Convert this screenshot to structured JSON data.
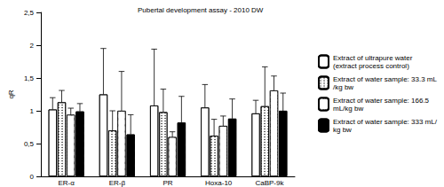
{
  "chart_data": {
    "type": "bar",
    "title": "Pubertal development assay - 2010 DW",
    "y_label": "qR",
    "categories": [
      "ER-α",
      "ER-β",
      "PR",
      "Hoxa-10",
      "CaBP-9k"
    ],
    "series": [
      {
        "name": "Extract of ultrapure water (extract process control)",
        "color": "#ffffff",
        "marker": "none",
        "values": [
          1.02,
          1.25,
          1.08,
          1.05,
          0.96
        ],
        "errors": [
          0.18,
          0.7,
          0.86,
          0.35,
          0.2
        ]
      },
      {
        "name": "Extract of water sample: 33.3 mL/kg bw",
        "color": "#ffffff",
        "marker": "dots",
        "values": [
          1.13,
          0.7,
          0.98,
          0.62,
          1.07
        ],
        "errors": [
          0.18,
          0.3,
          0.35,
          0.25,
          0.6
        ]
      },
      {
        "name": "Extract of water sample: 166.5 mL/kg bw",
        "color": "#ffffff",
        "marker": "grid",
        "values": [
          0.94,
          1.0,
          0.6,
          0.77,
          1.31
        ],
        "errors": [
          0.1,
          0.6,
          0.08,
          0.15,
          0.22
        ]
      },
      {
        "name": "Extract of water sample: 333 mL/kg bw",
        "color": "#000000",
        "marker": "stripes",
        "values": [
          0.99,
          0.64,
          0.82,
          0.88,
          1.0
        ],
        "errors": [
          0.12,
          0.3,
          0.4,
          0.3,
          0.27
        ]
      }
    ],
    "ylim": [
      0,
      2.5
    ],
    "yticks": [
      0,
      {
        "value": 0.5,
        "label": "0,5"
      },
      1,
      {
        "value": 1.5,
        "label": "1,5"
      },
      2,
      {
        "value": 2.5,
        "label": "2,5"
      }
    ],
    "grid": false,
    "legend": "right"
  }
}
